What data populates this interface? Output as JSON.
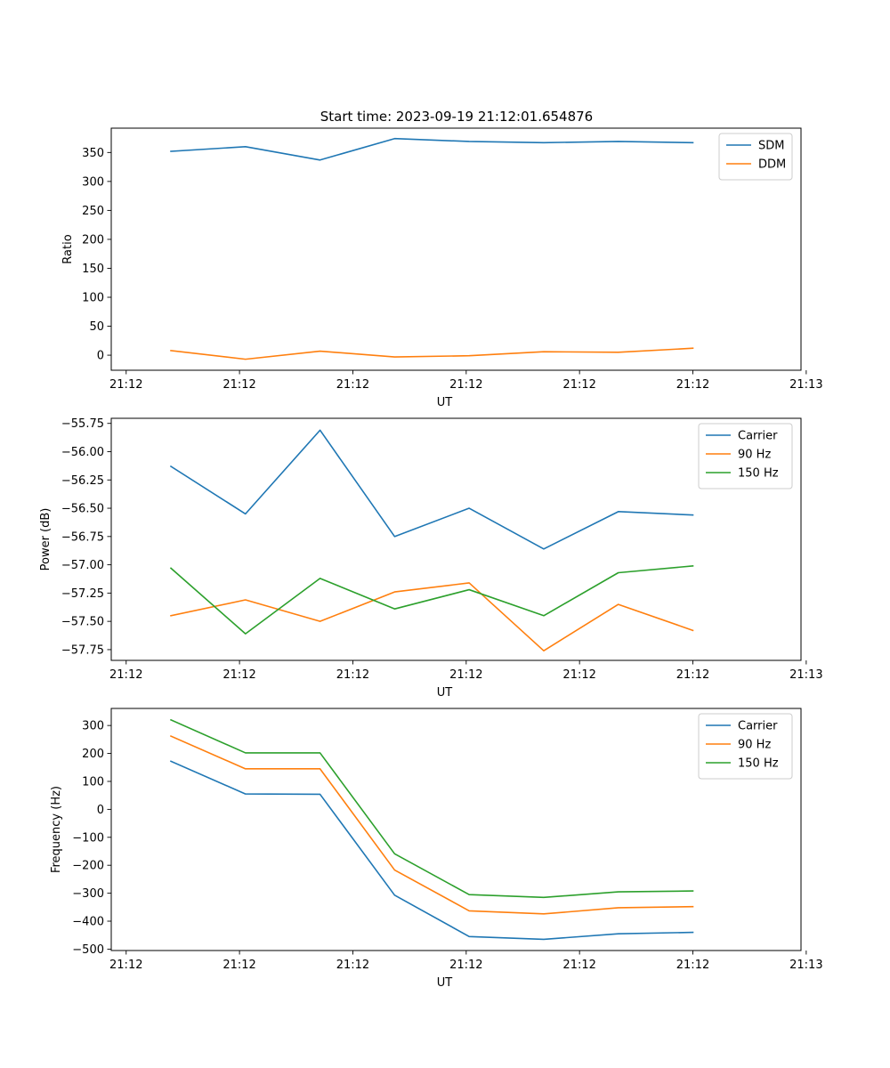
{
  "figure": {
    "title": "Start time: 2023-09-19 21:12:01.654876"
  },
  "chart_data": [
    {
      "type": "line",
      "xlabel": "UT",
      "ylabel": "Ratio",
      "x": [
        1,
        2,
        3,
        4,
        5,
        6,
        7,
        8
      ],
      "xlim": [
        0.2,
        9.45
      ],
      "xticks": [
        {
          "v": 0.4,
          "label": "21:12"
        },
        {
          "v": 1.92,
          "label": "21:12"
        },
        {
          "v": 3.44,
          "label": "21:12"
        },
        {
          "v": 4.96,
          "label": "21:12"
        },
        {
          "v": 6.48,
          "label": "21:12"
        },
        {
          "v": 8.0,
          "label": "21:12"
        },
        {
          "v": 9.52,
          "label": "21:13"
        }
      ],
      "ylim": [
        -26,
        392
      ],
      "yticks": [
        {
          "v": 0,
          "label": "0"
        },
        {
          "v": 50,
          "label": "50"
        },
        {
          "v": 100,
          "label": "100"
        },
        {
          "v": 150,
          "label": "150"
        },
        {
          "v": 200,
          "label": "200"
        },
        {
          "v": 250,
          "label": "250"
        },
        {
          "v": 300,
          "label": "300"
        },
        {
          "v": 350,
          "label": "350"
        }
      ],
      "legend_position": "top-right",
      "series": [
        {
          "name": "SDM",
          "color": "#1f77b4",
          "values": [
            352,
            360,
            337,
            374,
            369,
            367,
            369,
            367
          ]
        },
        {
          "name": "DDM",
          "color": "#ff7f0e",
          "values": [
            8,
            -7,
            7,
            -3,
            -1,
            6,
            5,
            12
          ]
        }
      ]
    },
    {
      "type": "line",
      "xlabel": "UT",
      "ylabel": "Power (dB)",
      "x": [
        1,
        2,
        3,
        4,
        5,
        6,
        7,
        8
      ],
      "xlim": [
        0.2,
        9.45
      ],
      "xticks": [
        {
          "v": 0.4,
          "label": "21:12"
        },
        {
          "v": 1.92,
          "label": "21:12"
        },
        {
          "v": 3.44,
          "label": "21:12"
        },
        {
          "v": 4.96,
          "label": "21:12"
        },
        {
          "v": 6.48,
          "label": "21:12"
        },
        {
          "v": 8.0,
          "label": "21:12"
        },
        {
          "v": 9.52,
          "label": "21:13"
        }
      ],
      "ylim": [
        -57.845,
        -55.705
      ],
      "yticks": [
        {
          "v": -57.75,
          "label": "−57.75"
        },
        {
          "v": -57.5,
          "label": "−57.50"
        },
        {
          "v": -57.25,
          "label": "−57.25"
        },
        {
          "v": -57.0,
          "label": "−57.00"
        },
        {
          "v": -56.75,
          "label": "−56.75"
        },
        {
          "v": -56.5,
          "label": "−56.50"
        },
        {
          "v": -56.25,
          "label": "−56.25"
        },
        {
          "v": -56.0,
          "label": "−56.00"
        },
        {
          "v": -55.75,
          "label": "−55.75"
        }
      ],
      "legend_position": "top-right",
      "series": [
        {
          "name": "Carrier",
          "color": "#1f77b4",
          "values": [
            -56.13,
            -56.55,
            -55.81,
            -56.75,
            -56.5,
            -56.86,
            -56.53,
            -56.56
          ]
        },
        {
          "name": "90 Hz",
          "color": "#ff7f0e",
          "values": [
            -57.45,
            -57.31,
            -57.5,
            -57.24,
            -57.16,
            -57.76,
            -57.35,
            -57.58
          ]
        },
        {
          "name": "150 Hz",
          "color": "#2ca02c",
          "values": [
            -57.03,
            -57.61,
            -57.12,
            -57.39,
            -57.22,
            -57.45,
            -57.07,
            -57.01
          ]
        }
      ]
    },
    {
      "type": "line",
      "xlabel": "UT",
      "ylabel": "Frequency (Hz)",
      "x": [
        1,
        2,
        3,
        4,
        5,
        6,
        7,
        8
      ],
      "xlim": [
        0.2,
        9.45
      ],
      "xticks": [
        {
          "v": 0.4,
          "label": "21:12"
        },
        {
          "v": 1.92,
          "label": "21:12"
        },
        {
          "v": 3.44,
          "label": "21:12"
        },
        {
          "v": 4.96,
          "label": "21:12"
        },
        {
          "v": 6.48,
          "label": "21:12"
        },
        {
          "v": 8.0,
          "label": "21:12"
        },
        {
          "v": 9.52,
          "label": "21:13"
        }
      ],
      "ylim": [
        -505,
        361
      ],
      "yticks": [
        {
          "v": -500,
          "label": "−500"
        },
        {
          "v": -400,
          "label": "−400"
        },
        {
          "v": -300,
          "label": "−300"
        },
        {
          "v": -200,
          "label": "−200"
        },
        {
          "v": -100,
          "label": "−100"
        },
        {
          "v": 0,
          "label": "0"
        },
        {
          "v": 100,
          "label": "100"
        },
        {
          "v": 200,
          "label": "200"
        },
        {
          "v": 300,
          "label": "300"
        }
      ],
      "legend_position": "top-right",
      "series": [
        {
          "name": "Carrier",
          "color": "#1f77b4",
          "values": [
            172,
            55,
            54,
            -307,
            -455,
            -465,
            -445,
            -440
          ]
        },
        {
          "name": "90 Hz",
          "color": "#ff7f0e",
          "values": [
            262,
            145,
            145,
            -217,
            -363,
            -374,
            -352,
            -348
          ]
        },
        {
          "name": "150 Hz",
          "color": "#2ca02c",
          "values": [
            320,
            202,
            202,
            -159,
            -305,
            -315,
            -295,
            -292
          ]
        }
      ]
    }
  ]
}
